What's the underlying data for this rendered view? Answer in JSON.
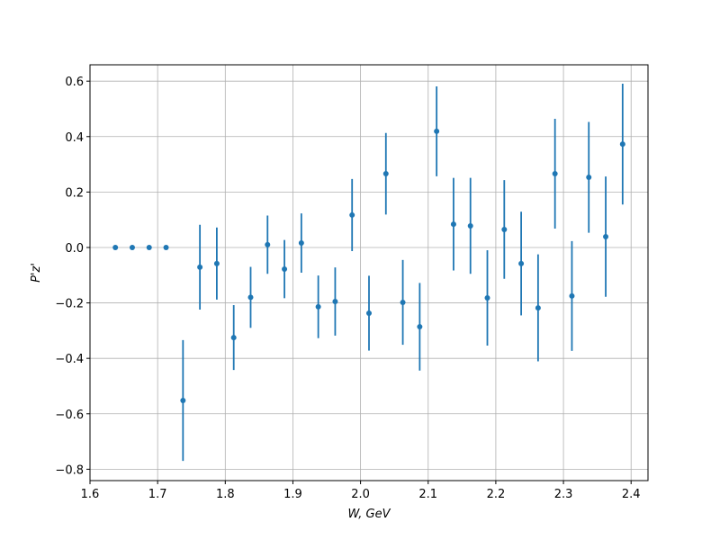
{
  "chart_data": {
    "type": "errorbar",
    "xlabel": "W, GeV",
    "ylabel": "P'z'",
    "x": [
      1.6375,
      1.6625,
      1.6875,
      1.7125,
      1.7375,
      1.7625,
      1.7875,
      1.8125,
      1.8375,
      1.8625,
      1.8875,
      1.9125,
      1.9375,
      1.9625,
      1.9875,
      2.0125,
      2.0375,
      2.0625,
      2.0875,
      2.1125,
      2.1375,
      2.1625,
      2.1875,
      2.2125,
      2.2375,
      2.2625,
      2.2875,
      2.3125,
      2.3375,
      2.3625,
      2.3875
    ],
    "series": [
      {
        "color": "#1f77b4",
        "values": [
          0,
          0,
          0,
          0,
          -0.552,
          -0.071,
          -0.058,
          -0.325,
          -0.18,
          0.01,
          -0.078,
          0.016,
          -0.214,
          -0.195,
          0.117,
          -0.237,
          0.266,
          -0.198,
          -0.286,
          0.419,
          0.084,
          0.078,
          -0.182,
          0.065,
          -0.058,
          -0.218,
          0.266,
          -0.175,
          0.253,
          0.039,
          0.373
        ],
        "errors": [
          0,
          0,
          0,
          0,
          0.218,
          0.153,
          0.13,
          0.117,
          0.11,
          0.105,
          0.105,
          0.107,
          0.113,
          0.123,
          0.13,
          0.135,
          0.147,
          0.153,
          0.158,
          0.162,
          0.167,
          0.173,
          0.172,
          0.178,
          0.187,
          0.193,
          0.198,
          0.198,
          0.2,
          0.217,
          0.218
        ]
      }
    ],
    "xlim": [
      1.6,
      2.425
    ],
    "ylim": [
      -0.841,
      0.659
    ],
    "xticks": [
      1.6,
      1.7,
      1.8,
      1.9,
      {
        "value": 2,
        "label": "2.0"
      },
      2.1,
      2.2,
      2.3,
      2.4
    ],
    "yticks": [
      {
        "value": -0.8,
        "label": "−0.8"
      },
      {
        "value": -0.6,
        "label": "−0.6"
      },
      {
        "value": -0.4,
        "label": "−0.4"
      },
      {
        "value": -0.2,
        "label": "−0.2"
      },
      {
        "value": 0,
        "label": "0.0"
      },
      0.2,
      0.4,
      0.6
    ],
    "grid": true
  }
}
